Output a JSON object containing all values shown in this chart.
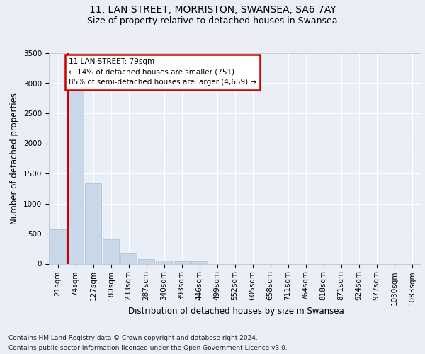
{
  "title1": "11, LAN STREET, MORRISTON, SWANSEA, SA6 7AY",
  "title2": "Size of property relative to detached houses in Swansea",
  "xlabel": "Distribution of detached houses by size in Swansea",
  "ylabel": "Number of detached properties",
  "categories": [
    "21sqm",
    "74sqm",
    "127sqm",
    "180sqm",
    "233sqm",
    "287sqm",
    "340sqm",
    "393sqm",
    "446sqm",
    "499sqm",
    "552sqm",
    "605sqm",
    "658sqm",
    "711sqm",
    "764sqm",
    "818sqm",
    "871sqm",
    "924sqm",
    "977sqm",
    "1030sqm",
    "1083sqm"
  ],
  "values": [
    570,
    2920,
    1330,
    410,
    170,
    80,
    55,
    45,
    40,
    0,
    0,
    0,
    0,
    0,
    0,
    0,
    0,
    0,
    0,
    0,
    0
  ],
  "bar_color": "#c8d8ea",
  "bar_edge_color": "#a8bece",
  "highlight_color": "#cc0000",
  "annotation_text": "11 LAN STREET: 79sqm\n← 14% of detached houses are smaller (751)\n85% of semi-detached houses are larger (4,659) →",
  "annotation_box_color": "#ffffff",
  "annotation_box_edge": "#cc0000",
  "ylim": [
    0,
    3500
  ],
  "yticks": [
    0,
    500,
    1000,
    1500,
    2000,
    2500,
    3000,
    3500
  ],
  "footnote1": "Contains HM Land Registry data © Crown copyright and database right 2024.",
  "footnote2": "Contains public sector information licensed under the Open Government Licence v3.0.",
  "background_color": "#eaeff7",
  "grid_color": "#ffffff",
  "title1_fontsize": 10,
  "title2_fontsize": 9,
  "xlabel_fontsize": 8.5,
  "ylabel_fontsize": 8.5,
  "tick_fontsize": 7.5,
  "annot_fontsize": 7.5,
  "footnote_fontsize": 6.5,
  "vline_x": 0.575
}
